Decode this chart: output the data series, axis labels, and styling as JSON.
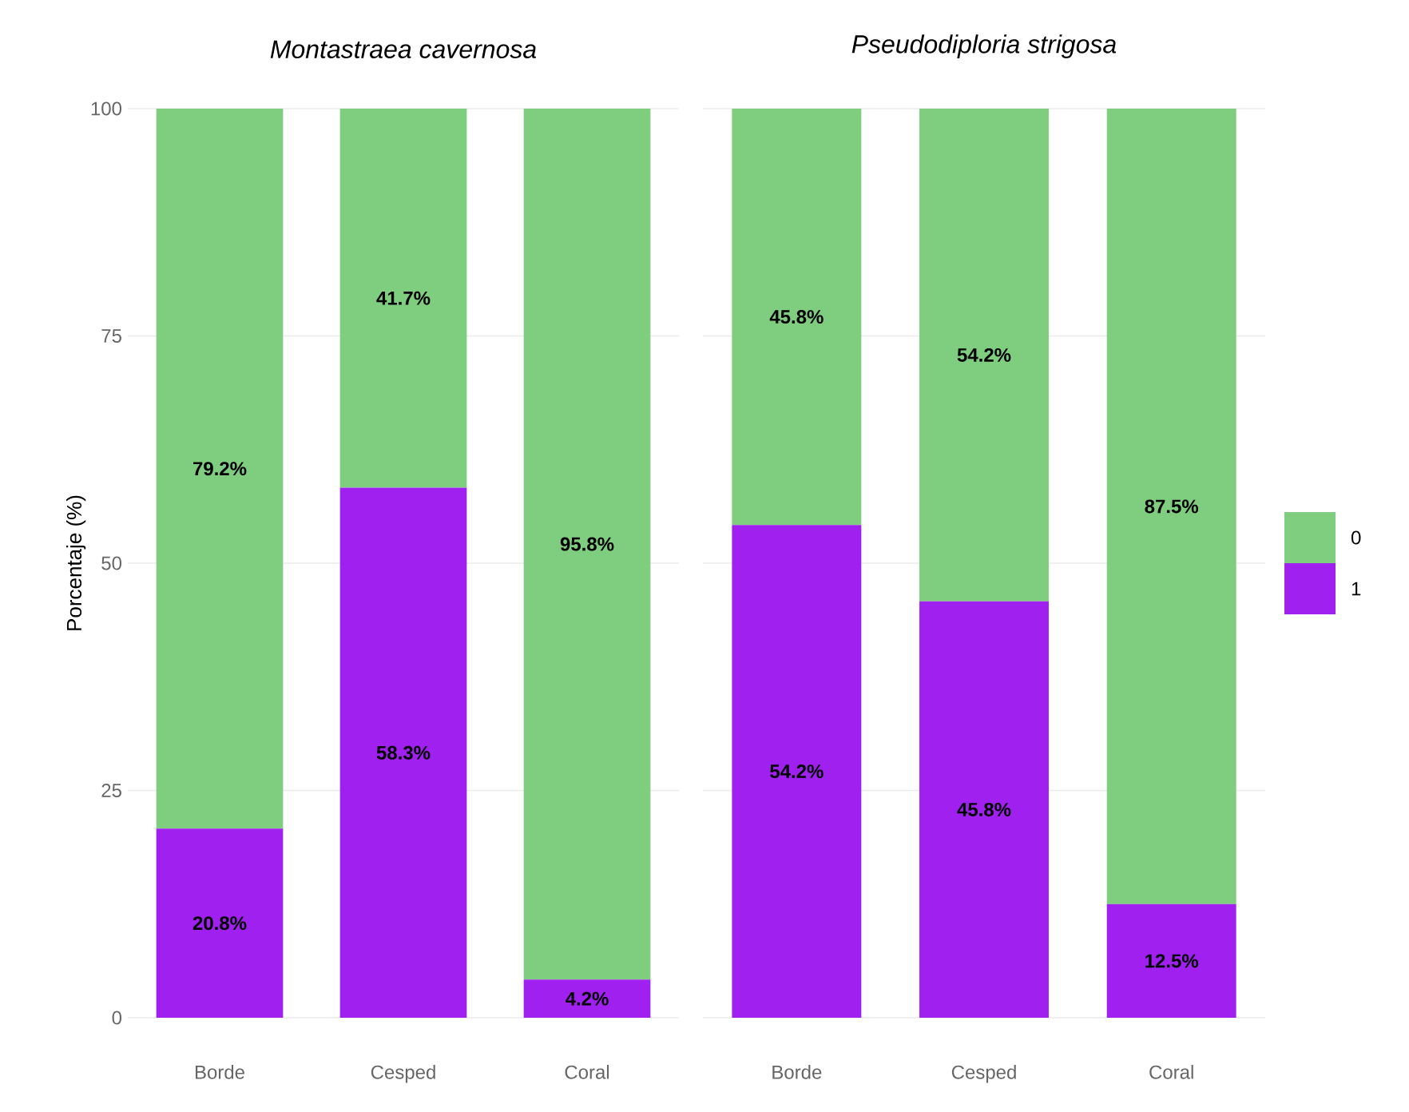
{
  "chart_data": [
    {
      "type": "bar",
      "title": "Montastraea cavernosa",
      "ylabel": "Porcentaje (%)",
      "categories": [
        "Borde",
        "Cesped",
        "Coral"
      ],
      "stacked": true,
      "series": [
        {
          "color": "#a020f0",
          "values": [
            20.8,
            58.3,
            4.2
          ],
          "value_labels": [
            "20.8%",
            "58.3%",
            "4.2%"
          ]
        },
        {
          "color": "#7fcd7f",
          "values": [
            79.2,
            41.7,
            95.8
          ],
          "value_labels": [
            "79.2%",
            "41.7%",
            "95.8%"
          ]
        }
      ],
      "ylim": [
        0,
        100
      ],
      "yticks": [
        0,
        25,
        50,
        75,
        100
      ],
      "grid": "y",
      "legend": false
    },
    {
      "type": "bar",
      "title": "Pseudodiploria strigosa",
      "categories": [
        "Borde",
        "Cesped",
        "Coral"
      ],
      "stacked": true,
      "series": [
        {
          "name": "1",
          "color": "#a020f0",
          "values": [
            54.2,
            45.8,
            12.5
          ],
          "value_labels": [
            "54.2%",
            "45.8%",
            "12.5%"
          ]
        },
        {
          "name": "0",
          "color": "#7fcd7f",
          "values": [
            45.8,
            54.2,
            87.5
          ],
          "value_labels": [
            "45.8%",
            "54.2%",
            "87.5%"
          ]
        }
      ],
      "ylim": [
        0,
        100
      ],
      "yticks": [
        0,
        25,
        50,
        75,
        100
      ],
      "grid": "y",
      "legend": "right",
      "tick_labels": "x"
    }
  ]
}
